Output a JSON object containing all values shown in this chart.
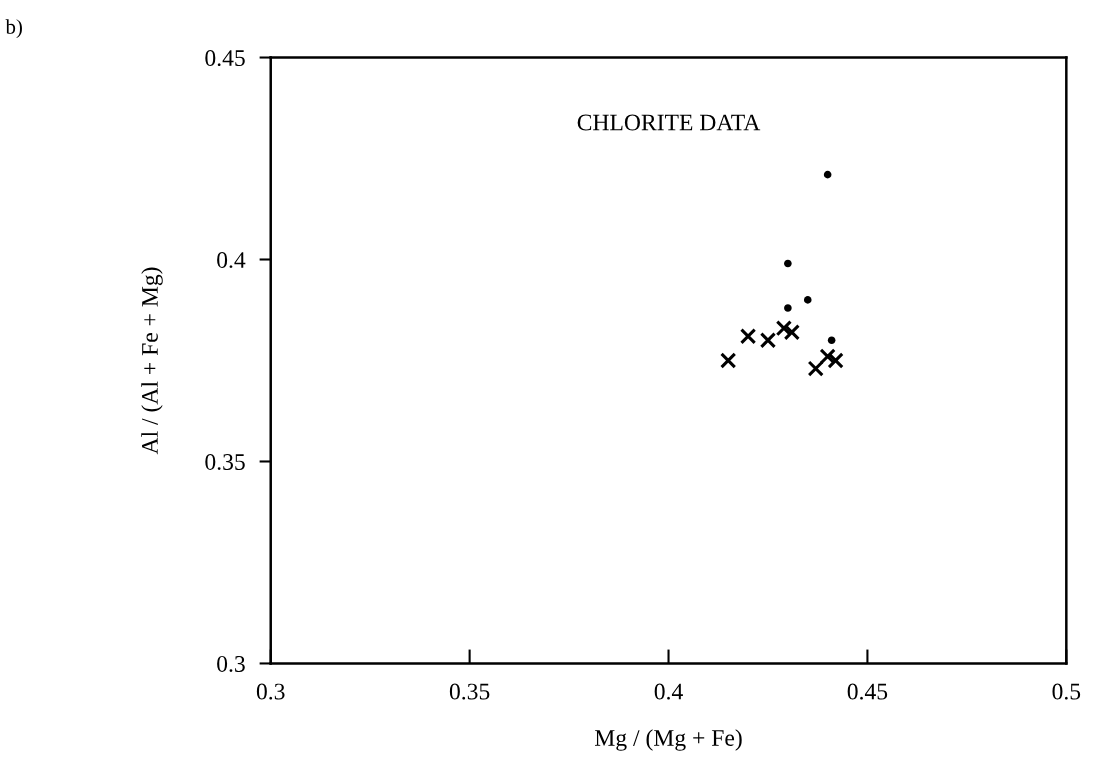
{
  "chart_data": {
    "type": "scatter",
    "title": "CHLORITE DATA",
    "xlabel": "Mg / (Mg + Fe)",
    "ylabel": "Al / (Al + Fe + Mg)",
    "annotations": [
      "b)"
    ],
    "series": [
      {
        "color": "#000000",
        "marker": "circle",
        "x": [
          0.44,
          0.43,
          0.43,
          0.435,
          0.441
        ],
        "values": [
          0.421,
          0.399,
          0.388,
          0.39,
          0.38
        ]
      },
      {
        "color": "#000000",
        "marker": "cross",
        "x": [
          0.415,
          0.42,
          0.425,
          0.429,
          0.431,
          0.437,
          0.44,
          0.442
        ],
        "values": [
          0.375,
          0.381,
          0.38,
          0.383,
          0.382,
          0.373,
          0.376,
          0.375
        ]
      }
    ],
    "xlim": [
      0.3,
      0.5
    ],
    "xticks": [
      0.3,
      0.35,
      0.4,
      0.45,
      0.5
    ],
    "ylim": [
      0.3,
      0.45
    ],
    "yticks": [
      0.3,
      0.35,
      0.4,
      0.45
    ],
    "grid": false,
    "legend": false
  }
}
